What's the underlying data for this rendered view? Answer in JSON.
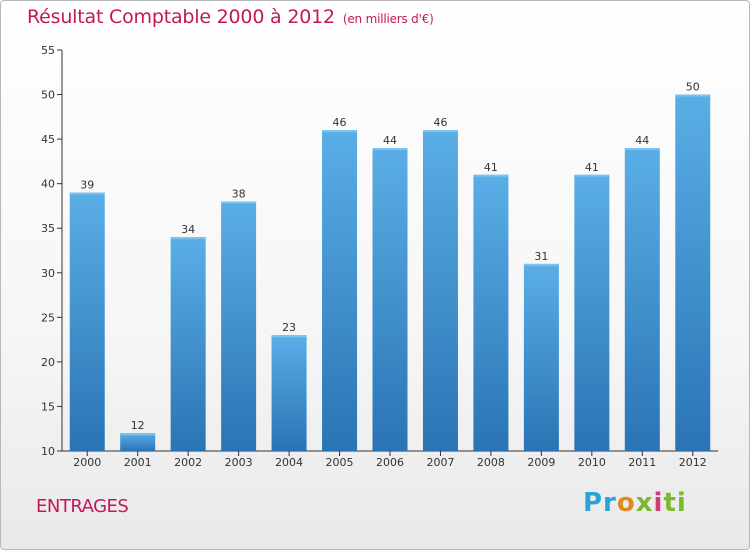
{
  "title": "Résultat Comptable 2000 à 2012",
  "subtitle": "(en milliers d'€)",
  "place": "ENTRAGES",
  "brand": {
    "text": [
      "Pr",
      "o",
      "x",
      "i",
      "ti"
    ]
  },
  "colors": {
    "title": "#c2185b",
    "bar_top": "#5aaee6",
    "bar_bottom": "#2a74b4"
  },
  "chart_data": {
    "type": "bar",
    "title": "Résultat Comptable 2000 à 2012",
    "subtitle": "(en milliers d'€)",
    "xlabel": "",
    "ylabel": "",
    "categories": [
      "2000",
      "2001",
      "2002",
      "2003",
      "2004",
      "2005",
      "2006",
      "2007",
      "2008",
      "2009",
      "2010",
      "2011",
      "2012"
    ],
    "values": [
      39,
      12,
      34,
      38,
      23,
      46,
      44,
      46,
      41,
      31,
      41,
      44,
      50
    ],
    "ylim": [
      10,
      55
    ],
    "yticks": [
      10,
      15,
      20,
      25,
      30,
      35,
      40,
      45,
      50,
      55
    ],
    "grid": false,
    "legend": "none"
  }
}
